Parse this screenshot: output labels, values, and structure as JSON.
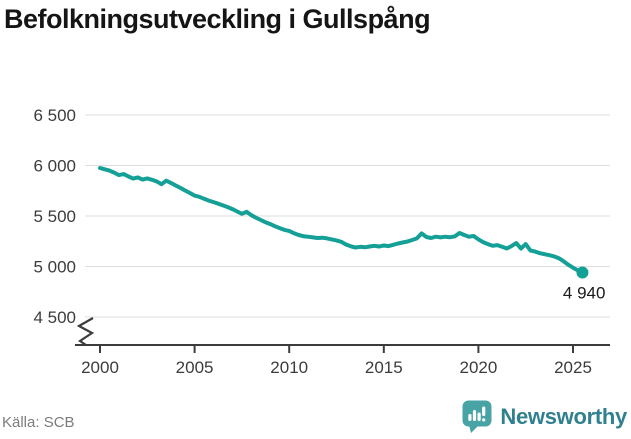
{
  "title": "Befolkningsutveckling i Gullspång",
  "source": {
    "text": "Källa: SCB"
  },
  "branding": {
    "name": "Newsworthy",
    "icon": "bar-chart-speech-bubble"
  },
  "colors": {
    "line": "#14A096",
    "grid": "#dddddd",
    "axis": "#3c3c3c",
    "title": "#151515",
    "source_text": "#7c7c7c",
    "brand_text": "#31808F",
    "brand_icon": "#48A3A4",
    "end_label": "#1a1a1a"
  },
  "chart_data": {
    "type": "line",
    "title": "Befolkningsutveckling i Gullspång",
    "xlabel": "",
    "ylabel": "",
    "grid": "horizontal",
    "legend": "none",
    "axis_break": true,
    "x_ticks": [
      2000,
      2005,
      2010,
      2015,
      2020,
      2025
    ],
    "y_ticks": [
      4500,
      5000,
      5500,
      6000,
      6500
    ],
    "y_tick_labels": [
      "4 500",
      "5 000",
      "5 500",
      "6 000",
      "6 500"
    ],
    "ylim_visible": [
      4500,
      6500
    ],
    "last_point_label": "4 940",
    "last_point_value": 4940,
    "x": [
      2000,
      2000.25,
      2000.5,
      2000.75,
      2001,
      2001.25,
      2001.5,
      2001.75,
      2002,
      2002.25,
      2002.5,
      2002.75,
      2003,
      2003.25,
      2003.5,
      2003.75,
      2004,
      2004.25,
      2004.5,
      2004.75,
      2005,
      2005.25,
      2005.5,
      2005.75,
      2006,
      2006.25,
      2006.5,
      2006.75,
      2007,
      2007.25,
      2007.5,
      2007.75,
      2008,
      2008.25,
      2008.5,
      2008.75,
      2009,
      2009.25,
      2009.5,
      2009.75,
      2010,
      2010.25,
      2010.5,
      2010.75,
      2011,
      2011.25,
      2011.5,
      2011.75,
      2012,
      2012.25,
      2012.5,
      2012.75,
      2013,
      2013.25,
      2013.5,
      2013.75,
      2014,
      2014.25,
      2014.5,
      2014.75,
      2015,
      2015.25,
      2015.5,
      2015.75,
      2016,
      2016.25,
      2016.5,
      2016.75,
      2017,
      2017.25,
      2017.5,
      2017.75,
      2018,
      2018.25,
      2018.5,
      2018.75,
      2019,
      2019.25,
      2019.5,
      2019.75,
      2020,
      2020.25,
      2020.5,
      2020.75,
      2021,
      2021.25,
      2021.5,
      2021.75,
      2022,
      2022.25,
      2022.5,
      2022.75,
      2023,
      2023.25,
      2023.5,
      2023.75,
      2024,
      2024.25,
      2024.5,
      2024.75,
      2025,
      2025.25,
      2025.5
    ],
    "values": [
      5975,
      5962,
      5950,
      5930,
      5905,
      5915,
      5892,
      5870,
      5882,
      5860,
      5872,
      5858,
      5842,
      5815,
      5850,
      5828,
      5802,
      5778,
      5752,
      5728,
      5702,
      5690,
      5670,
      5652,
      5638,
      5622,
      5605,
      5588,
      5568,
      5545,
      5522,
      5542,
      5508,
      5482,
      5460,
      5438,
      5420,
      5398,
      5380,
      5362,
      5352,
      5330,
      5312,
      5300,
      5295,
      5288,
      5282,
      5285,
      5278,
      5268,
      5258,
      5245,
      5218,
      5200,
      5188,
      5195,
      5190,
      5198,
      5205,
      5198,
      5208,
      5202,
      5215,
      5228,
      5238,
      5248,
      5262,
      5278,
      5328,
      5292,
      5282,
      5295,
      5288,
      5295,
      5290,
      5298,
      5332,
      5312,
      5295,
      5302,
      5268,
      5242,
      5222,
      5205,
      5212,
      5195,
      5178,
      5202,
      5232,
      5178,
      5222,
      5158,
      5148,
      5132,
      5122,
      5112,
      5100,
      5082,
      5052,
      5018,
      4988,
      4962,
      4940
    ]
  }
}
